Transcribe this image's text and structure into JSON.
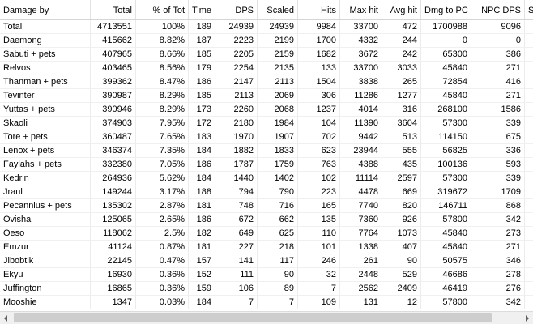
{
  "columns": [
    "Damage by",
    "Total",
    "% of Tot",
    "Time",
    "DPS",
    "Scaled",
    "Hits",
    "Max hit",
    "Avg hit",
    "Dmg to PC",
    "NPC DPS",
    "S"
  ],
  "rows": [
    [
      "Total",
      "4713551",
      "100%",
      "189",
      "24939",
      "24939",
      "9984",
      "33700",
      "472",
      "1700988",
      "9096"
    ],
    [
      "Daemong",
      "415662",
      "8.82%",
      "187",
      "2223",
      "2199",
      "1700",
      "4332",
      "244",
      "0",
      "0"
    ],
    [
      "Sabuti + pets",
      "407965",
      "8.66%",
      "185",
      "2205",
      "2159",
      "1682",
      "3672",
      "242",
      "65300",
      "386"
    ],
    [
      "Relvos",
      "403465",
      "8.56%",
      "179",
      "2254",
      "2135",
      "133",
      "33700",
      "3033",
      "45840",
      "271"
    ],
    [
      "Thanman + pets",
      "399362",
      "8.47%",
      "186",
      "2147",
      "2113",
      "1504",
      "3838",
      "265",
      "72854",
      "416"
    ],
    [
      "Tevinter",
      "390987",
      "8.29%",
      "185",
      "2113",
      "2069",
      "306",
      "11286",
      "1277",
      "45840",
      "271"
    ],
    [
      "Yuttas + pets",
      "390946",
      "8.29%",
      "173",
      "2260",
      "2068",
      "1237",
      "4014",
      "316",
      "268100",
      "1586"
    ],
    [
      "Skaoli",
      "374903",
      "7.95%",
      "172",
      "2180",
      "1984",
      "104",
      "11390",
      "3604",
      "57300",
      "339"
    ],
    [
      "Tore + pets",
      "360487",
      "7.65%",
      "183",
      "1970",
      "1907",
      "702",
      "9442",
      "513",
      "114150",
      "675"
    ],
    [
      "Lenox + pets",
      "346374",
      "7.35%",
      "184",
      "1882",
      "1833",
      "623",
      "23944",
      "555",
      "56825",
      "336"
    ],
    [
      "Faylahs + pets",
      "332380",
      "7.05%",
      "186",
      "1787",
      "1759",
      "763",
      "4388",
      "435",
      "100136",
      "593"
    ],
    [
      "Kedrin",
      "264936",
      "5.62%",
      "184",
      "1440",
      "1402",
      "102",
      "11114",
      "2597",
      "57300",
      "339"
    ],
    [
      "Jraul",
      "149244",
      "3.17%",
      "188",
      "794",
      "790",
      "223",
      "4478",
      "669",
      "319672",
      "1709"
    ],
    [
      "Pecannius + pets",
      "135302",
      "2.87%",
      "181",
      "748",
      "716",
      "165",
      "7740",
      "820",
      "146711",
      "868"
    ],
    [
      "Ovisha",
      "125065",
      "2.65%",
      "186",
      "672",
      "662",
      "135",
      "7360",
      "926",
      "57800",
      "342"
    ],
    [
      "Oeso",
      "118062",
      "2.5%",
      "182",
      "649",
      "625",
      "110",
      "7764",
      "1073",
      "45840",
      "273"
    ],
    [
      "Emzur",
      "41124",
      "0.87%",
      "181",
      "227",
      "218",
      "101",
      "1338",
      "407",
      "45840",
      "271"
    ],
    [
      "Jibobtik",
      "22145",
      "0.47%",
      "157",
      "141",
      "117",
      "246",
      "261",
      "90",
      "50575",
      "346"
    ],
    [
      "Ekyu",
      "16930",
      "0.36%",
      "152",
      "111",
      "90",
      "32",
      "2448",
      "529",
      "46686",
      "278"
    ],
    [
      "Juffington",
      "16865",
      "0.36%",
      "159",
      "106",
      "89",
      "7",
      "2562",
      "2409",
      "46419",
      "276"
    ],
    [
      "Mooshie",
      "1347",
      "0.03%",
      "184",
      "7",
      "7",
      "109",
      "131",
      "12",
      "57800",
      "342"
    ]
  ],
  "scrollbar": {
    "left_icon": "scroll-left-arrow-icon",
    "right_icon": "scroll-right-arrow-icon"
  }
}
